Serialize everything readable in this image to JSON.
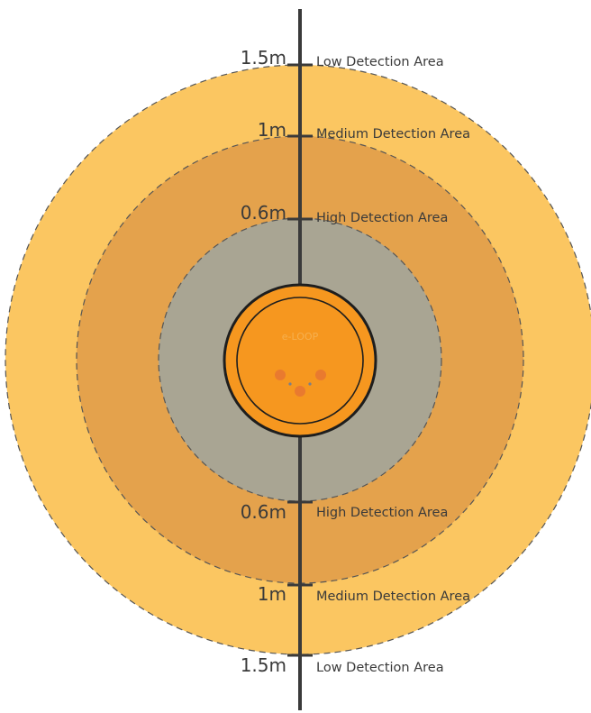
{
  "colors": {
    "low": "#fbc661",
    "medium": "#e4a24c",
    "high": "#a9a593",
    "device": "#f6971f",
    "device_dot": "#e97a2f",
    "axis": "#3a3a3a"
  },
  "zones": [
    {
      "distance": "1.5m",
      "label": "Low Detection Area"
    },
    {
      "distance": "1m",
      "label": "Medium Detection Area"
    },
    {
      "distance": "0.6m",
      "label": "High Detection Area"
    }
  ],
  "bottom_zones": [
    {
      "distance": "0.6m",
      "label": "High Detection Area"
    },
    {
      "distance": "1m",
      "label": "Medium Detection Area"
    },
    {
      "distance": "1.5m",
      "label": "Low Detection Area"
    }
  ],
  "device": {
    "name": "e-LOOP"
  }
}
